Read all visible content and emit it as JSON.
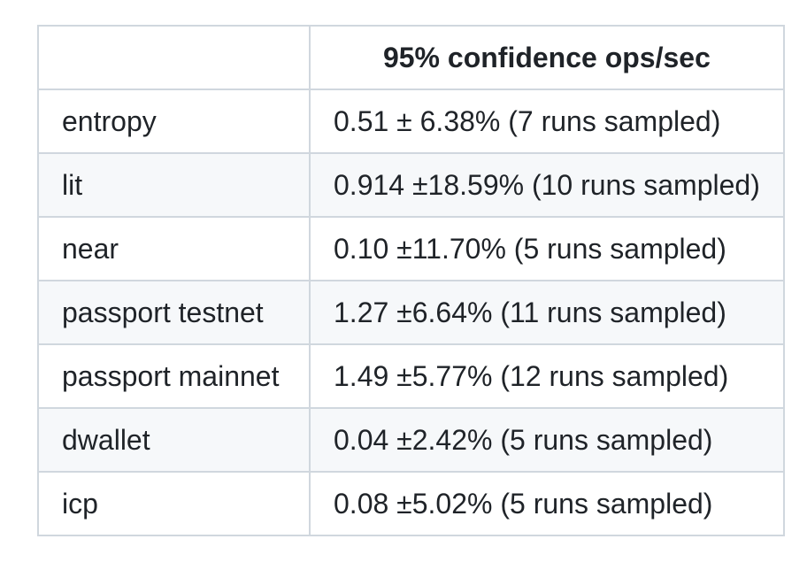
{
  "table": {
    "columns": [
      "",
      "95% confidence ops/sec"
    ],
    "rows": [
      {
        "label": "entropy",
        "value": "0.51 ± 6.38% (7 runs sampled)"
      },
      {
        "label": "lit",
        "value": "0.914 ±18.59% (10 runs sampled)"
      },
      {
        "label": "near",
        "value": "0.10 ±11.70% (5 runs sampled)"
      },
      {
        "label": "passport testnet",
        "value": "1.27 ±6.64% (11 runs sampled)"
      },
      {
        "label": "passport mainnet",
        "value": "1.49 ±5.77% (12 runs sampled)"
      },
      {
        "label": "dwallet",
        "value": "0.04 ±2.42% (5 runs sampled)"
      },
      {
        "label": "icp",
        "value": "0.08 ±5.02% (5 runs sampled)"
      }
    ],
    "colors": {
      "border": "#d0d7de",
      "stripe": "#f6f8fa",
      "row_bg": "#ffffff",
      "text": "#1f2328",
      "page_bg": "#ffffff"
    }
  }
}
